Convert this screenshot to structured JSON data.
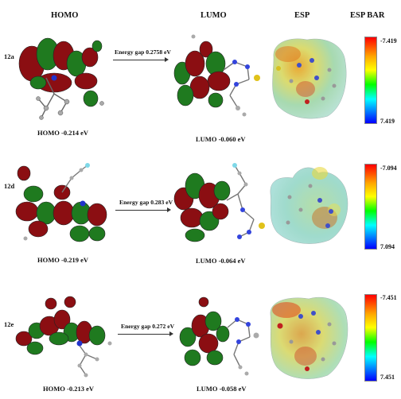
{
  "headers": {
    "homo": "HOMO",
    "lumo": "LUMO",
    "esp": "ESP",
    "esp_bar": "ESP BAR"
  },
  "colors": {
    "lobe_red": "#8b0e12",
    "lobe_green": "#1f7a1f",
    "esp_red": "#ff0000",
    "esp_blue": "#0000ff"
  },
  "rows": [
    {
      "label": "12a",
      "homo": "HOMO -0.214 eV",
      "gap": "Energy gap 0.2758 eV",
      "lumo": "LUMO -0.060 eV",
      "bar_top": "-7.419",
      "bar_bottom": "7.419"
    },
    {
      "label": "12d",
      "homo": "HOMO -0.219 eV",
      "gap": "Energy gap 0.283 eV",
      "lumo": "LUMO -0.064 eV",
      "bar_top": "-7.094",
      "bar_bottom": "7.094"
    },
    {
      "label": "12e",
      "homo": "HOMO -0.213 eV",
      "gap": "Energy gap 0.272 eV",
      "lumo": "LUMO -0.058 eV",
      "bar_top": "-7.451",
      "bar_bottom": "7.451"
    }
  ]
}
